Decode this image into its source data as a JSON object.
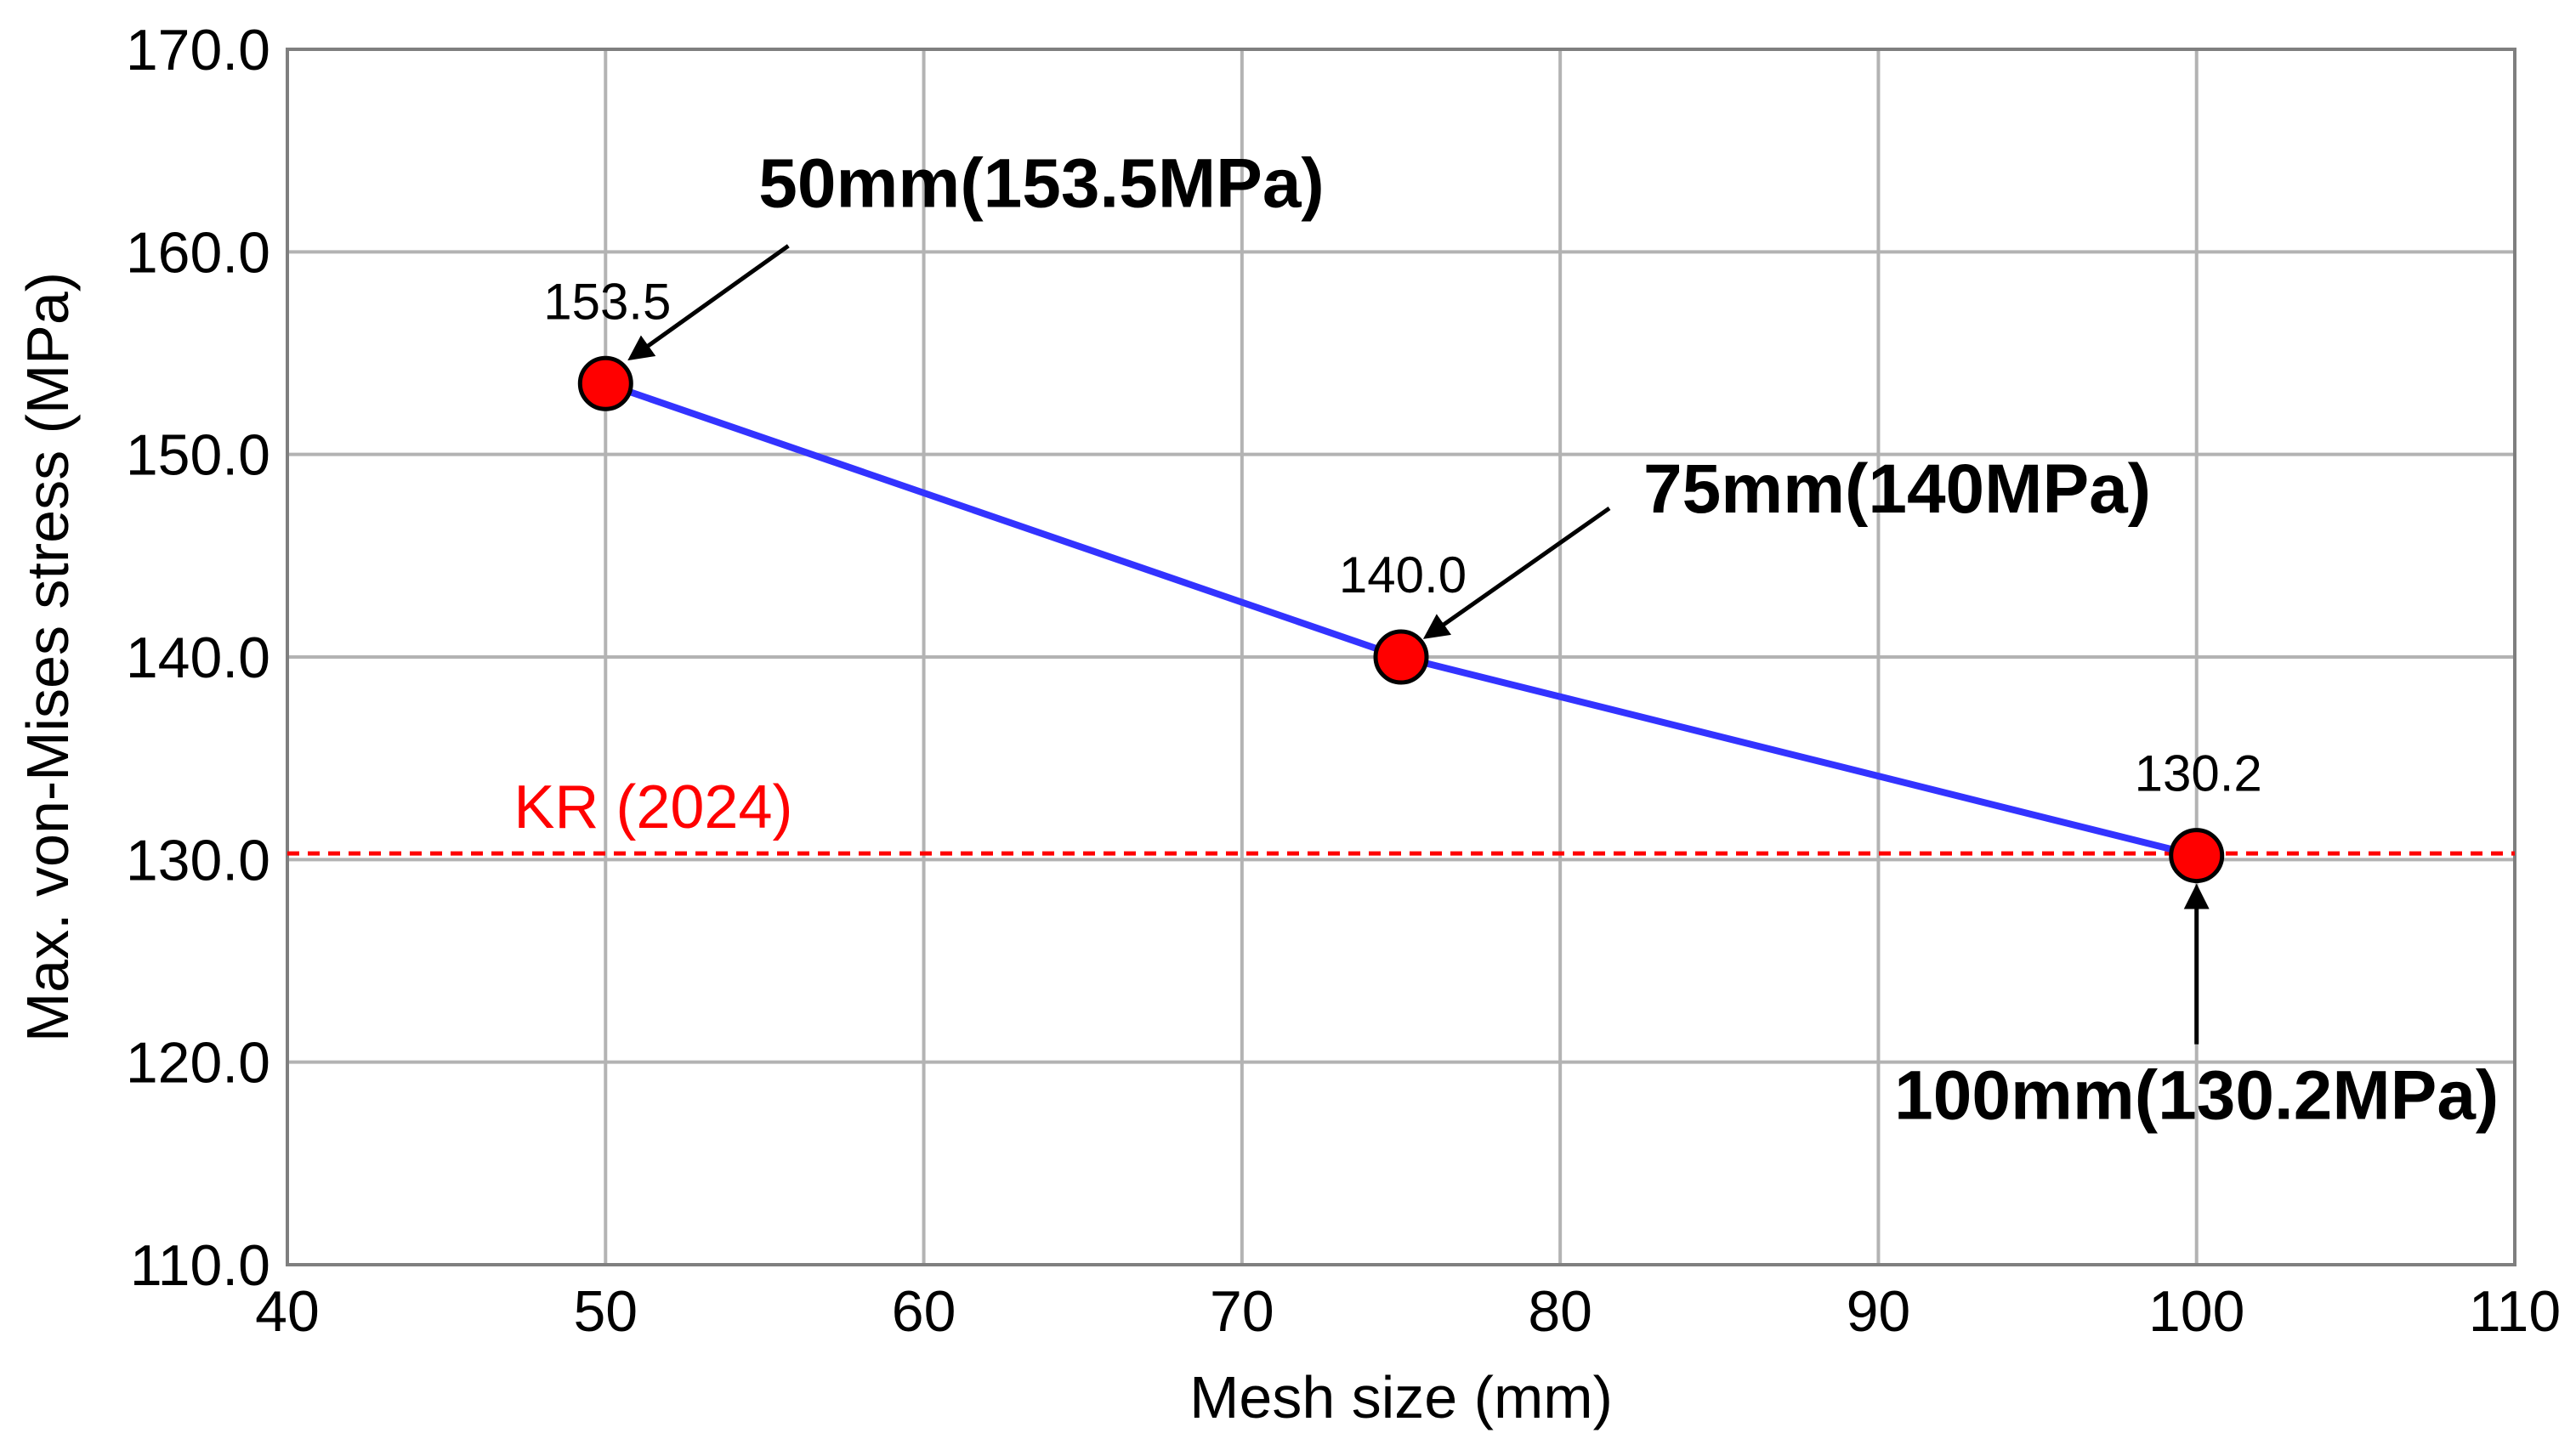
{
  "chart_data": {
    "type": "line",
    "xlabel": "Mesh size (mm)",
    "ylabel": "Max. von-Mises stress (MPa)",
    "xlim": [
      40,
      110
    ],
    "ylim": [
      110,
      170
    ],
    "x_ticks": [
      40,
      50,
      60,
      70,
      80,
      90,
      100,
      110
    ],
    "y_ticks": [
      "110.0",
      "120.0",
      "130.0",
      "140.0",
      "150.0",
      "160.0",
      "170.0"
    ],
    "grid": true,
    "series": [
      {
        "x": [
          50,
          75,
          100
        ],
        "y": [
          153.5,
          140.0,
          130.2
        ],
        "point_labels": [
          "153.5",
          "140.0",
          "130.2"
        ],
        "line_color": "#3333ff",
        "marker_color": "#ff0000"
      }
    ],
    "reference_line": {
      "label": "KR (2024)",
      "y": 130.3,
      "color": "#ff0000",
      "style": "dotted"
    },
    "annotations": [
      {
        "text": "50mm(153.5MPa)",
        "point_x": 50,
        "point_y": 153.5
      },
      {
        "text": "75mm(140MPa)",
        "point_x": 75,
        "point_y": 140.0
      },
      {
        "text": "100mm(130.2MPa)",
        "point_x": 100,
        "point_y": 130.2
      }
    ]
  }
}
